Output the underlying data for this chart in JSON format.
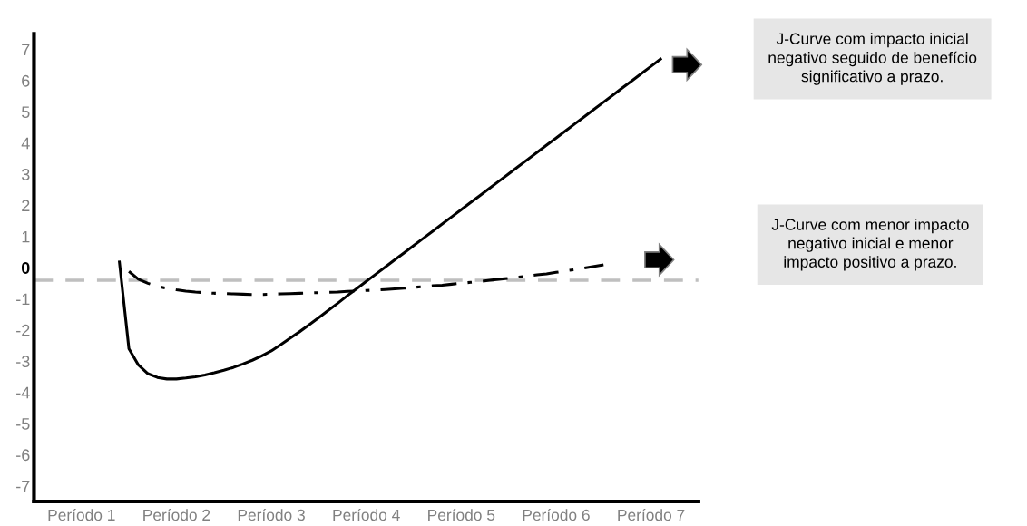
{
  "chart_data": {
    "type": "line",
    "categories": [
      null,
      null,
      null,
      null,
      null,
      "Período 1",
      null,
      null,
      null,
      null,
      null,
      null,
      null,
      null,
      null,
      "Período 2",
      null,
      null,
      null,
      null,
      null,
      null,
      null,
      null,
      null,
      "Período 3",
      null,
      null,
      null,
      null,
      null,
      null,
      null,
      null,
      null,
      "Período 4",
      null,
      null,
      null,
      null,
      null,
      null,
      null,
      null,
      null,
      "Período 5",
      null,
      null,
      null,
      null,
      null,
      null,
      null,
      null,
      null,
      "Período 6",
      null,
      null,
      null,
      null,
      null,
      null,
      null,
      null,
      null,
      "Período 7",
      null,
      null,
      null,
      null,
      null
    ],
    "ylim": [
      -7.5,
      7.5
    ],
    "yticks": [
      -7,
      -6,
      -5,
      -4,
      -3,
      -2,
      -1,
      0,
      1,
      2,
      3,
      4,
      5,
      6,
      7
    ],
    "series": [
      {
        "color": "#000000",
        "line_style": "solid",
        "values": [
          null,
          null,
          null,
          null,
          null,
          null,
          null,
          null,
          null,
          0.18,
          -2.6,
          -3.12,
          -3.4,
          -3.52,
          -3.57,
          -3.57,
          -3.54,
          -3.5,
          -3.44,
          -3.37,
          -3.29,
          -3.2,
          -3.09,
          -2.97,
          -2.83,
          -2.67,
          -2.47,
          -2.26,
          -2.05,
          -1.83,
          -1.6,
          -1.37,
          -1.14,
          -0.9,
          -0.67,
          -0.44,
          -0.21,
          0.02,
          0.25,
          0.48,
          0.71,
          0.94,
          1.17,
          1.4,
          1.63,
          1.86,
          2.09,
          2.32,
          2.55,
          2.78,
          3.01,
          3.24,
          3.47,
          3.7,
          3.93,
          4.16,
          4.39,
          4.62,
          4.85,
          5.08,
          5.31,
          5.54,
          5.77,
          6.0,
          6.23,
          6.46,
          6.69,
          null,
          null,
          null,
          null
        ]
      },
      {
        "color": "#000000",
        "line_style": "dashdot",
        "values": [
          null,
          null,
          null,
          null,
          null,
          null,
          null,
          null,
          null,
          null,
          -0.12,
          -0.37,
          -0.5,
          -0.6,
          -0.66,
          -0.71,
          -0.75,
          -0.78,
          -0.8,
          -0.82,
          -0.83,
          -0.84,
          -0.85,
          -0.86,
          -0.86,
          -0.85,
          -0.84,
          -0.83,
          -0.82,
          -0.81,
          -0.8,
          -0.79,
          -0.78,
          -0.76,
          -0.75,
          -0.73,
          -0.72,
          -0.7,
          -0.68,
          -0.66,
          -0.63,
          -0.61,
          -0.58,
          -0.56,
          -0.53,
          -0.5,
          -0.47,
          -0.44,
          -0.4,
          -0.37,
          -0.34,
          -0.3,
          -0.27,
          -0.23,
          -0.2,
          -0.15,
          -0.1,
          -0.06,
          -0.01,
          0.04,
          0.09,
          null,
          null,
          null,
          null,
          null,
          null,
          null,
          null,
          null,
          null
        ]
      }
    ],
    "ref_lines": [
      {
        "axis": "y",
        "value": -0.4,
        "label": null,
        "color": "#bfbfbf",
        "line_style": "dashed"
      }
    ],
    "annotations": [
      "J-Curve com impacto inicial\nnegativo seguido de benefício\nsignificativo a prazo.",
      "J-Curve com menor impacto\nnegativo inicial e menor\nimpacto positivo a prazo."
    ]
  }
}
